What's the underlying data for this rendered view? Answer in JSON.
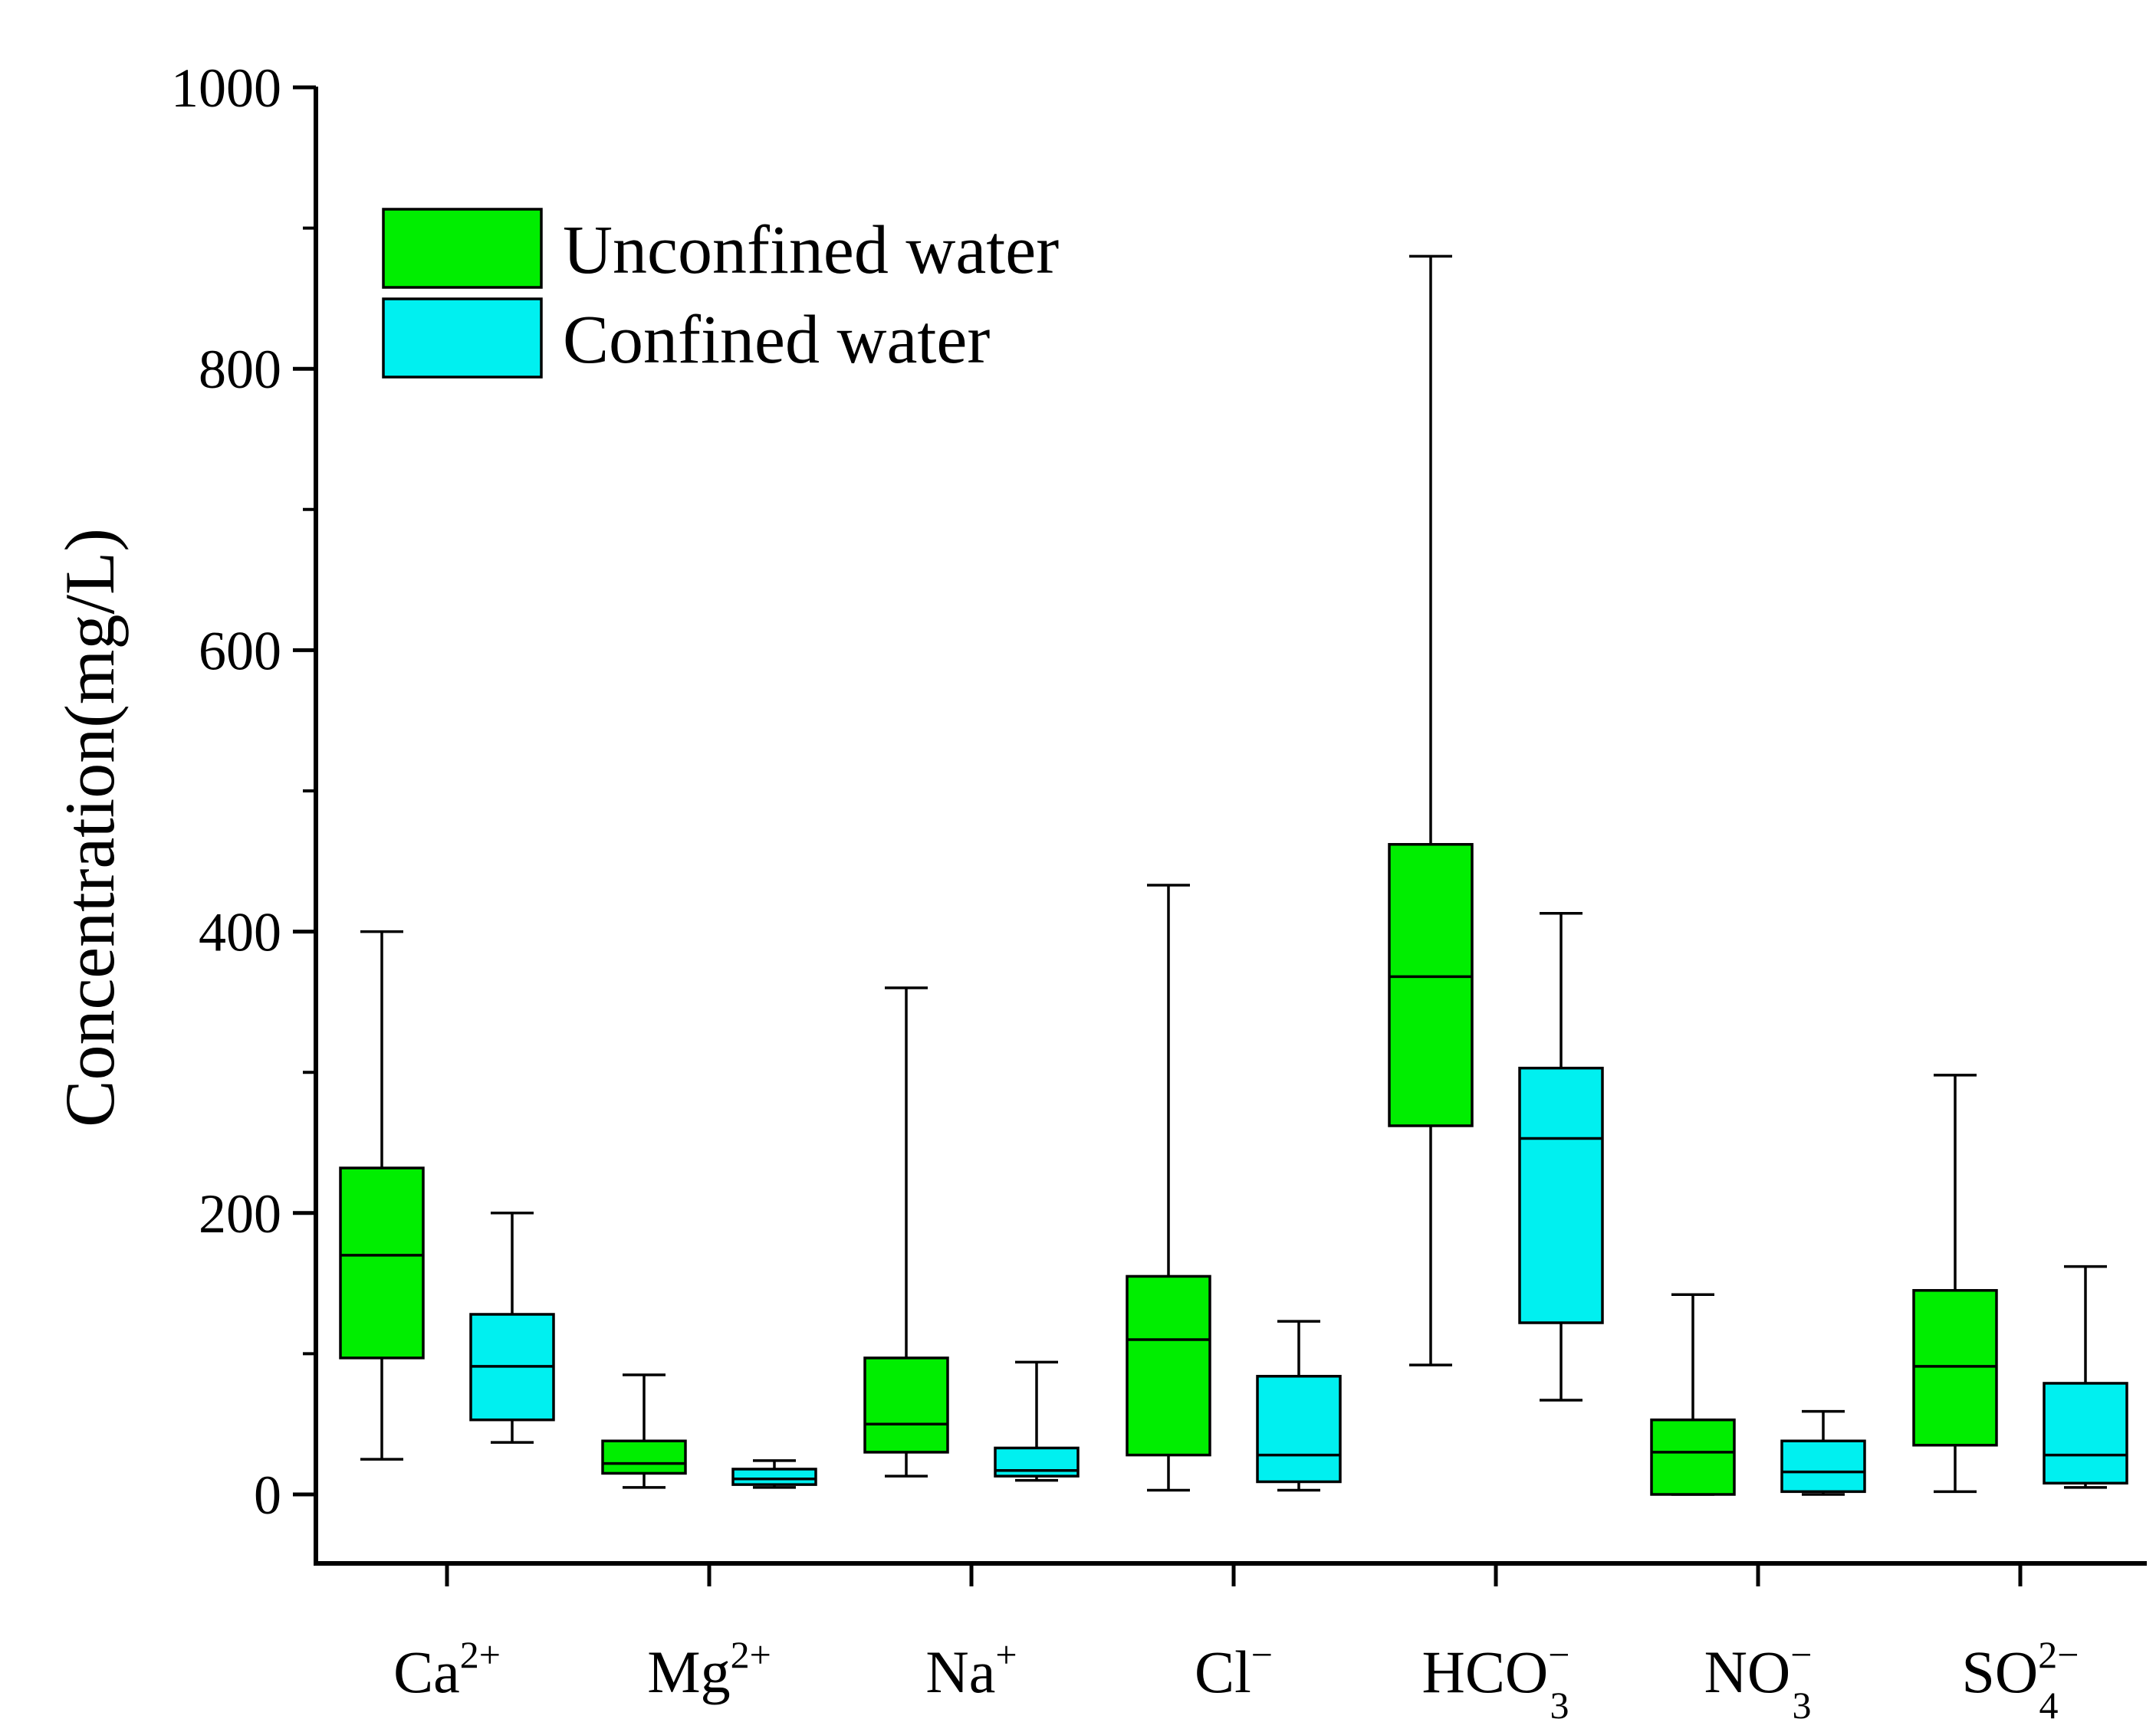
{
  "chart_data": {
    "type": "box",
    "ylabel": "Concentration(mg/L)",
    "ylim": [
      -100,
      1000
    ],
    "yticks": [
      0,
      200,
      400,
      600,
      800,
      1000
    ],
    "grid": false,
    "legend_position": "top-left",
    "categories": [
      {
        "base": "Ca",
        "sup": "2+",
        "sub": ""
      },
      {
        "base": "Mg",
        "sup": "2+",
        "sub": ""
      },
      {
        "base": "Na",
        "sup": "+",
        "sub": ""
      },
      {
        "base": "Cl",
        "sup": "−",
        "sub": ""
      },
      {
        "base": "HCO",
        "sup": "−",
        "sub": "3"
      },
      {
        "base": "NO",
        "sup": "−",
        "sub": "3"
      },
      {
        "base": "SO",
        "sup": "2−",
        "sub": "4"
      }
    ],
    "series": [
      {
        "name": "Unconfined water",
        "color": "#00ee00",
        "boxes": [
          {
            "min": 25,
            "q1": 97,
            "median": 170,
            "q3": 232,
            "max": 400
          },
          {
            "min": 5,
            "q1": 15,
            "median": 22,
            "q3": 38,
            "max": 85
          },
          {
            "min": 13,
            "q1": 30,
            "median": 50,
            "q3": 97,
            "max": 360
          },
          {
            "min": 3,
            "q1": 28,
            "median": 110,
            "q3": 155,
            "max": 433
          },
          {
            "min": 92,
            "q1": 262,
            "median": 368,
            "q3": 462,
            "max": 880
          },
          {
            "min": 0,
            "q1": 0,
            "median": 30,
            "q3": 53,
            "max": 142
          },
          {
            "min": 2,
            "q1": 35,
            "median": 91,
            "q3": 145,
            "max": 298
          }
        ]
      },
      {
        "name": "Confined water",
        "color": "#00f0f0",
        "boxes": [
          {
            "min": 37,
            "q1": 53,
            "median": 91,
            "q3": 128,
            "max": 200
          },
          {
            "min": 5,
            "q1": 7,
            "median": 11,
            "q3": 18,
            "max": 24
          },
          {
            "min": 10,
            "q1": 13,
            "median": 17,
            "q3": 33,
            "max": 94
          },
          {
            "min": 3,
            "q1": 9,
            "median": 28,
            "q3": 84,
            "max": 123
          },
          {
            "min": 67,
            "q1": 122,
            "median": 253,
            "q3": 303,
            "max": 413
          },
          {
            "min": 0,
            "q1": 2,
            "median": 16,
            "q3": 38,
            "max": 59
          },
          {
            "min": 5,
            "q1": 8,
            "median": 28,
            "q3": 79,
            "max": 162
          }
        ]
      }
    ]
  }
}
